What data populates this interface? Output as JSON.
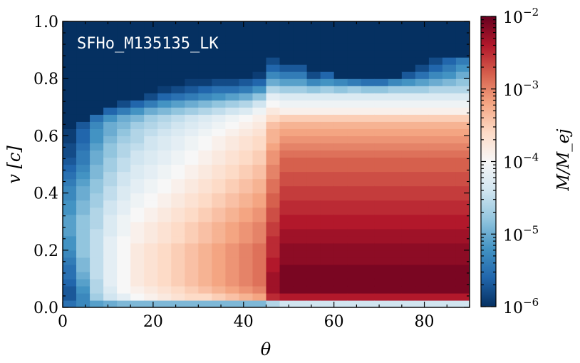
{
  "chart_data": {
    "type": "heatmap",
    "annotation": "SFHo_M135135_LK",
    "xlabel": "θ",
    "ylabel": "v [c]",
    "xlim": [
      0,
      90
    ],
    "ylim": [
      0,
      1.0
    ],
    "x_ticks": [
      {
        "value": 0,
        "label": "0"
      },
      {
        "value": 20,
        "label": "20"
      },
      {
        "value": 40,
        "label": "40"
      },
      {
        "value": 60,
        "label": "60"
      },
      {
        "value": 80,
        "label": "80"
      }
    ],
    "y_ticks": [
      {
        "value": 0.0,
        "label": "0.0"
      },
      {
        "value": 0.2,
        "label": "0.2"
      },
      {
        "value": 0.4,
        "label": "0.4"
      },
      {
        "value": 0.6,
        "label": "0.6"
      },
      {
        "value": 0.8,
        "label": "0.8"
      },
      {
        "value": 1.0,
        "label": "1.0"
      }
    ],
    "colorbar": {
      "label": "M/M_ej",
      "scale": "log",
      "range": [
        1e-06,
        0.01
      ],
      "tick_labels": [
        {
          "exp": -2,
          "base": "10",
          "power": "−2"
        },
        {
          "exp": -3,
          "base": "10",
          "power": "−3"
        },
        {
          "exp": -4,
          "base": "10",
          "power": "−4"
        },
        {
          "exp": -5,
          "base": "10",
          "power": "−5"
        },
        {
          "exp": -6,
          "base": "10",
          "power": "−6"
        }
      ],
      "colormap": "RdBu_r",
      "colors": [
        "#053061",
        "#2166ac",
        "#4393c3",
        "#92c5de",
        "#d1e5f0",
        "#f7f7f7",
        "#fddbc7",
        "#f4a582",
        "#d6604d",
        "#b2182b",
        "#67001f"
      ]
    },
    "bins": {
      "n_theta": 30,
      "theta_step": 3,
      "n_v": 40,
      "v_step": 0.025
    },
    "log10_mass_by_column": [
      [
        -5.5,
        -5.7,
        -5.7,
        -5.6,
        -5.5,
        -5.5,
        -5.4,
        -5.3,
        -5.2,
        -5.2,
        -5.1,
        -5.1,
        -5.1,
        -5.2,
        -5.2,
        -5.3,
        -5.3,
        -5.4,
        -5.5,
        -5.6,
        -5.7,
        -5.8,
        -5.8,
        -5.9,
        -5.9,
        -6,
        -6,
        -6,
        -6,
        -6,
        -6,
        -6,
        -6,
        -6,
        -6,
        -6,
        -6,
        -6,
        -6,
        -6
      ],
      [
        -5.3,
        -5.3,
        -5.2,
        -5.1,
        -5,
        -4.9,
        -4.9,
        -4.8,
        -4.8,
        -4.8,
        -4.8,
        -4.8,
        -4.8,
        -4.9,
        -4.9,
        -5,
        -5,
        -5.1,
        -5.2,
        -5.3,
        -5.4,
        -5.4,
        -5.5,
        -5.6,
        -5.6,
        -5.7,
        -6,
        -6,
        -6,
        -6,
        -6,
        -6,
        -6,
        -6,
        -6,
        -6,
        -6,
        -6,
        -6,
        -6
      ],
      [
        -5.1,
        -4.7,
        -4.6,
        -4.6,
        -4.5,
        -4.5,
        -4.5,
        -4.5,
        -4.5,
        -4.5,
        -4.5,
        -4.6,
        -4.6,
        -4.6,
        -4.7,
        -4.7,
        -4.8,
        -4.8,
        -4.9,
        -4.9,
        -5,
        -5,
        -5.1,
        -5.2,
        -5.2,
        -5.3,
        -5.5,
        -6,
        -6,
        -6,
        -6,
        -6,
        -6,
        -6,
        -6,
        -6,
        -6,
        -6,
        -6,
        -6
      ],
      [
        -5,
        -4.4,
        -4.3,
        -4.2,
        -4.2,
        -4.2,
        -4.2,
        -4.2,
        -4.2,
        -4.2,
        -4.3,
        -4.3,
        -4.3,
        -4.4,
        -4.4,
        -4.5,
        -4.5,
        -4.6,
        -4.6,
        -4.7,
        -4.7,
        -4.8,
        -4.8,
        -4.9,
        -5,
        -5,
        -5.2,
        -5.6,
        -6,
        -6,
        -6,
        -6,
        -6,
        -6,
        -6,
        -6,
        -6,
        -6,
        -6,
        -6
      ],
      [
        -4.9,
        -4.2,
        -4,
        -4,
        -4,
        -4,
        -4,
        -4,
        -4,
        -4,
        -4.1,
        -4.1,
        -4.1,
        -4.2,
        -4.2,
        -4.3,
        -4.3,
        -4.4,
        -4.4,
        -4.5,
        -4.5,
        -4.6,
        -4.6,
        -4.7,
        -4.8,
        -4.9,
        -5,
        -5.4,
        -5.8,
        -6,
        -6,
        -6,
        -6,
        -6,
        -6,
        -6,
        -6,
        -6,
        -6,
        -6
      ],
      [
        -4.9,
        -4,
        -3.9,
        -3.8,
        -3.8,
        -3.8,
        -3.8,
        -3.8,
        -3.8,
        -3.9,
        -3.9,
        -3.9,
        -4,
        -4,
        -4.1,
        -4.1,
        -4.2,
        -4.2,
        -4.3,
        -4.3,
        -4.4,
        -4.4,
        -4.5,
        -4.6,
        -4.6,
        -4.7,
        -4.9,
        -5.2,
        -5.6,
        -6,
        -6,
        -6,
        -6,
        -6,
        -6,
        -6,
        -6,
        -6,
        -6,
        -6
      ],
      [
        -4.9,
        -3.9,
        -3.8,
        -3.7,
        -3.7,
        -3.7,
        -3.7,
        -3.7,
        -3.7,
        -3.8,
        -3.8,
        -3.8,
        -3.9,
        -3.9,
        -4,
        -4,
        -4.1,
        -4.1,
        -4.2,
        -4.2,
        -4.3,
        -4.3,
        -4.4,
        -4.4,
        -4.5,
        -4.6,
        -4.7,
        -5,
        -5.4,
        -5.8,
        -6,
        -6,
        -6,
        -6,
        -6,
        -6,
        -6,
        -6,
        -6,
        -6
      ],
      [
        -4.9,
        -3.8,
        -3.7,
        -3.6,
        -3.6,
        -3.6,
        -3.6,
        -3.6,
        -3.6,
        -3.7,
        -3.7,
        -3.7,
        -3.8,
        -3.8,
        -3.9,
        -3.9,
        -4,
        -4,
        -4.1,
        -4.1,
        -4.2,
        -4.2,
        -4.3,
        -4.3,
        -4.4,
        -4.5,
        -4.6,
        -4.9,
        -5.2,
        -5.6,
        -5.9,
        -6,
        -6,
        -6,
        -6,
        -6,
        -6,
        -6,
        -6,
        -6
      ],
      [
        -4.9,
        -3.7,
        -3.6,
        -3.5,
        -3.5,
        -3.5,
        -3.5,
        -3.5,
        -3.5,
        -3.6,
        -3.6,
        -3.6,
        -3.7,
        -3.7,
        -3.8,
        -3.8,
        -3.9,
        -3.9,
        -4,
        -4,
        -4.1,
        -4.1,
        -4.2,
        -4.2,
        -4.3,
        -4.4,
        -4.5,
        -4.8,
        -5.1,
        -5.5,
        -5.8,
        -6,
        -6,
        -6,
        -6,
        -6,
        -6,
        -6,
        -6,
        -6
      ],
      [
        -4.9,
        -3.6,
        -3.5,
        -3.4,
        -3.4,
        -3.4,
        -3.4,
        -3.4,
        -3.4,
        -3.5,
        -3.5,
        -3.5,
        -3.6,
        -3.6,
        -3.7,
        -3.7,
        -3.8,
        -3.8,
        -3.9,
        -3.9,
        -4,
        -4,
        -4.1,
        -4.1,
        -4.2,
        -4.3,
        -4.4,
        -4.7,
        -5,
        -5.4,
        -5.7,
        -5.9,
        -6,
        -6,
        -6,
        -6,
        -6,
        -6,
        -6,
        -6
      ],
      [
        -4.9,
        -3.6,
        -3.4,
        -3.3,
        -3.3,
        -3.3,
        -3.3,
        -3.3,
        -3.3,
        -3.4,
        -3.4,
        -3.4,
        -3.5,
        -3.5,
        -3.6,
        -3.6,
        -3.7,
        -3.7,
        -3.8,
        -3.8,
        -3.9,
        -3.9,
        -4,
        -4,
        -4.1,
        -4.2,
        -4.3,
        -4.6,
        -4.9,
        -5.3,
        -5.6,
        -5.9,
        -6,
        -6,
        -6,
        -6,
        -6,
        -6,
        -6,
        -6
      ],
      [
        -4.9,
        -3.5,
        -3.3,
        -3.2,
        -3.2,
        -3.2,
        -3.2,
        -3.2,
        -3.2,
        -3.3,
        -3.3,
        -3.3,
        -3.4,
        -3.4,
        -3.5,
        -3.5,
        -3.6,
        -3.6,
        -3.7,
        -3.7,
        -3.8,
        -3.8,
        -3.9,
        -3.9,
        -4,
        -4.1,
        -4.2,
        -4.5,
        -4.8,
        -5.2,
        -5.5,
        -5.8,
        -6,
        -6,
        -6,
        -6,
        -6,
        -6,
        -6,
        -6
      ],
      [
        -4.9,
        -3.4,
        -3.2,
        -3.1,
        -3.1,
        -3.1,
        -3.1,
        -3.1,
        -3.1,
        -3.2,
        -3.2,
        -3.2,
        -3.3,
        -3.3,
        -3.4,
        -3.4,
        -3.5,
        -3.5,
        -3.6,
        -3.6,
        -3.7,
        -3.7,
        -3.8,
        -3.8,
        -3.9,
        -4,
        -4.1,
        -4.4,
        -4.7,
        -5.1,
        -5.5,
        -5.8,
        -6,
        -6,
        -6,
        -6,
        -6,
        -6,
        -6,
        -6
      ],
      [
        -4.9,
        -3.3,
        -3.1,
        -3,
        -3,
        -3,
        -3,
        -3,
        -3,
        -3.1,
        -3.1,
        -3.1,
        -3.2,
        -3.2,
        -3.3,
        -3.3,
        -3.4,
        -3.4,
        -3.5,
        -3.5,
        -3.6,
        -3.6,
        -3.7,
        -3.7,
        -3.8,
        -3.9,
        -4,
        -4.3,
        -4.6,
        -5,
        -5.4,
        -5.7,
        -6,
        -6,
        -6,
        -6,
        -6,
        -6,
        -6,
        -6
      ],
      [
        -4.9,
        -3.2,
        -3,
        -2.9,
        -2.9,
        -2.9,
        -2.9,
        -2.9,
        -2.9,
        -3,
        -3,
        -3,
        -3.1,
        -3.1,
        -3.2,
        -3.2,
        -3.3,
        -3.3,
        -3.4,
        -3.4,
        -3.5,
        -3.5,
        -3.6,
        -3.6,
        -3.7,
        -3.8,
        -3.9,
        -4.1,
        -4.4,
        -4.8,
        -5.2,
        -5.6,
        -5.9,
        -6,
        -6,
        -6,
        -6,
        -6,
        -6,
        -6
      ],
      [
        -4.6,
        -2.5,
        -2.3,
        -2.3,
        -2.3,
        -2.4,
        -2.4,
        -2.5,
        -2.5,
        -2.5,
        -2.6,
        -2.6,
        -2.7,
        -2.7,
        -2.8,
        -2.8,
        -2.9,
        -2.9,
        -3,
        -3,
        -3.1,
        -3.1,
        -3.2,
        -3.3,
        -3.3,
        -3.4,
        -3.6,
        -3.8,
        -4,
        -4.2,
        -4.6,
        -5,
        -5.3,
        -5.6,
        -5.8,
        -6,
        -6,
        -6,
        -6,
        -6
      ],
      [
        -4.4,
        -2.4,
        -2.1,
        -2.1,
        -2.1,
        -2.1,
        -2.2,
        -2.2,
        -2.2,
        -2.3,
        -2.3,
        -2.4,
        -2.4,
        -2.5,
        -2.5,
        -2.6,
        -2.6,
        -2.7,
        -2.7,
        -2.8,
        -2.8,
        -2.9,
        -3,
        -3.1,
        -3.2,
        -3.3,
        -3.5,
        -3.9,
        -4.1,
        -4.3,
        -4.7,
        -5.1,
        -5.4,
        -5.7,
        -6,
        -6,
        -6,
        -6,
        -6,
        -6
      ],
      [
        -4.4,
        -2.4,
        -2.1,
        -2.1,
        -2.1,
        -2.1,
        -2.2,
        -2.2,
        -2.2,
        -2.3,
        -2.3,
        -2.4,
        -2.4,
        -2.5,
        -2.5,
        -2.6,
        -2.6,
        -2.7,
        -2.7,
        -2.8,
        -2.8,
        -2.9,
        -3,
        -3.1,
        -3.2,
        -3.3,
        -3.5,
        -3.9,
        -4.1,
        -4.3,
        -4.7,
        -5.1,
        -5.4,
        -5.7,
        -6,
        -6,
        -6,
        -6,
        -6,
        -6
      ],
      [
        -4.4,
        -2.4,
        -2.1,
        -2.1,
        -2.1,
        -2.1,
        -2.2,
        -2.2,
        -2.2,
        -2.3,
        -2.3,
        -2.4,
        -2.4,
        -2.5,
        -2.5,
        -2.6,
        -2.6,
        -2.7,
        -2.7,
        -2.8,
        -2.8,
        -2.9,
        -3,
        -3.1,
        -3.2,
        -3.3,
        -3.5,
        -3.9,
        -4.1,
        -4.3,
        -4.8,
        -5.3,
        -5.8,
        -6,
        -6,
        -6,
        -6,
        -6,
        -6,
        -6
      ],
      [
        -4.4,
        -2.4,
        -2.1,
        -2.1,
        -2.1,
        -2.1,
        -2.2,
        -2.2,
        -2.2,
        -2.3,
        -2.3,
        -2.4,
        -2.4,
        -2.5,
        -2.5,
        -2.6,
        -2.6,
        -2.7,
        -2.7,
        -2.8,
        -2.8,
        -2.9,
        -3,
        -3.1,
        -3.2,
        -3.3,
        -3.5,
        -3.9,
        -4.1,
        -4.3,
        -4.7,
        -5.2,
        -5.6,
        -6,
        -6,
        -6,
        -6,
        -6,
        -6,
        -6
      ],
      [
        -4.4,
        -2.4,
        -2.1,
        -2.1,
        -2.1,
        -2.1,
        -2.2,
        -2.2,
        -2.2,
        -2.3,
        -2.3,
        -2.4,
        -2.4,
        -2.5,
        -2.5,
        -2.6,
        -2.6,
        -2.7,
        -2.7,
        -2.8,
        -2.8,
        -2.9,
        -3,
        -3.1,
        -3.2,
        -3.3,
        -3.5,
        -3.9,
        -4.1,
        -4.3,
        -4.8,
        -5.3,
        -6,
        -6,
        -6,
        -6,
        -6,
        -6,
        -6,
        -6
      ],
      [
        -4.4,
        -2.4,
        -2.1,
        -2.1,
        -2.1,
        -2.1,
        -2.2,
        -2.2,
        -2.2,
        -2.3,
        -2.3,
        -2.4,
        -2.4,
        -2.5,
        -2.5,
        -2.6,
        -2.6,
        -2.7,
        -2.7,
        -2.8,
        -2.8,
        -2.9,
        -3,
        -3.1,
        -3.2,
        -3.3,
        -3.5,
        -3.9,
        -4.1,
        -4.3,
        -4.7,
        -5.4,
        -6,
        -6,
        -6,
        -6,
        -6,
        -6,
        -6,
        -6
      ],
      [
        -4.4,
        -2.4,
        -2.1,
        -2.1,
        -2.1,
        -2.1,
        -2.2,
        -2.2,
        -2.2,
        -2.3,
        -2.3,
        -2.4,
        -2.4,
        -2.5,
        -2.5,
        -2.6,
        -2.6,
        -2.7,
        -2.7,
        -2.8,
        -2.8,
        -2.9,
        -3,
        -3.1,
        -3.2,
        -3.3,
        -3.5,
        -3.9,
        -4.1,
        -4.3,
        -4.8,
        -5.5,
        -6,
        -6,
        -6,
        -6,
        -6,
        -6,
        -6,
        -6
      ],
      [
        -4.4,
        -2.4,
        -2.1,
        -2.1,
        -2.1,
        -2.1,
        -2.2,
        -2.2,
        -2.2,
        -2.3,
        -2.3,
        -2.4,
        -2.4,
        -2.5,
        -2.5,
        -2.6,
        -2.6,
        -2.7,
        -2.7,
        -2.8,
        -2.8,
        -2.9,
        -3,
        -3.1,
        -3.2,
        -3.3,
        -3.5,
        -3.9,
        -4.1,
        -4.3,
        -4.8,
        -5.5,
        -6,
        -6,
        -6,
        -6,
        -6,
        -6,
        -6,
        -6
      ],
      [
        -4.4,
        -2.4,
        -2.1,
        -2.1,
        -2.1,
        -2.1,
        -2.2,
        -2.2,
        -2.2,
        -2.3,
        -2.3,
        -2.4,
        -2.4,
        -2.5,
        -2.5,
        -2.6,
        -2.6,
        -2.7,
        -2.7,
        -2.8,
        -2.8,
        -2.9,
        -3,
        -3.1,
        -3.2,
        -3.3,
        -3.5,
        -3.9,
        -4.1,
        -4.3,
        -4.7,
        -5.3,
        -6,
        -6,
        -6,
        -6,
        -6,
        -6,
        -6,
        -6
      ],
      [
        -4.4,
        -2.4,
        -2.1,
        -2.1,
        -2.1,
        -2.1,
        -2.2,
        -2.2,
        -2.2,
        -2.3,
        -2.3,
        -2.4,
        -2.4,
        -2.5,
        -2.5,
        -2.6,
        -2.6,
        -2.7,
        -2.7,
        -2.8,
        -2.8,
        -2.9,
        -3,
        -3.1,
        -3.2,
        -3.3,
        -3.5,
        -3.9,
        -4.1,
        -4.3,
        -4.7,
        -5.2,
        -5.7,
        -6,
        -6,
        -6,
        -6,
        -6,
        -6,
        -6
      ],
      [
        -4.4,
        -2.4,
        -2.1,
        -2.1,
        -2.1,
        -2.1,
        -2.2,
        -2.2,
        -2.2,
        -2.3,
        -2.3,
        -2.4,
        -2.4,
        -2.5,
        -2.5,
        -2.6,
        -2.6,
        -2.7,
        -2.7,
        -2.8,
        -2.8,
        -2.9,
        -3,
        -3.1,
        -3.2,
        -3.3,
        -3.5,
        -3.9,
        -4.1,
        -4.3,
        -4.7,
        -5.1,
        -5.5,
        -5.8,
        -6,
        -6,
        -6,
        -6,
        -6,
        -6
      ],
      [
        -4.4,
        -2.4,
        -2.1,
        -2.1,
        -2.1,
        -2.1,
        -2.2,
        -2.2,
        -2.2,
        -2.3,
        -2.3,
        -2.4,
        -2.4,
        -2.5,
        -2.5,
        -2.6,
        -2.6,
        -2.7,
        -2.7,
        -2.8,
        -2.8,
        -2.9,
        -3,
        -3.1,
        -3.2,
        -3.3,
        -3.5,
        -3.9,
        -4.1,
        -4.3,
        -4.6,
        -5,
        -5.3,
        -5.6,
        -5.8,
        -6,
        -6,
        -6,
        -6,
        -6
      ],
      [
        -4.4,
        -2.4,
        -2.1,
        -2.1,
        -2.1,
        -2.1,
        -2.2,
        -2.2,
        -2.2,
        -2.3,
        -2.3,
        -2.4,
        -2.4,
        -2.5,
        -2.5,
        -2.6,
        -2.6,
        -2.7,
        -2.7,
        -2.8,
        -2.8,
        -2.9,
        -3,
        -3.1,
        -3.2,
        -3.3,
        -3.5,
        -3.9,
        -4.1,
        -4.3,
        -4.6,
        -4.9,
        -5.2,
        -5.4,
        -5.6,
        -6,
        -6,
        -6,
        -6,
        -6
      ],
      [
        -4.4,
        -2.4,
        -2.1,
        -2.1,
        -2.1,
        -2.1,
        -2.2,
        -2.2,
        -2.2,
        -2.3,
        -2.3,
        -2.4,
        -2.4,
        -2.5,
        -2.5,
        -2.6,
        -2.6,
        -2.7,
        -2.7,
        -2.8,
        -2.8,
        -2.9,
        -3,
        -3.1,
        -3.2,
        -3.3,
        -3.5,
        -3.9,
        -4.1,
        -4.3,
        -4.6,
        -4.8,
        -5,
        -5.2,
        -5.4,
        -6,
        -6,
        -6,
        -6,
        -6
      ]
    ]
  }
}
